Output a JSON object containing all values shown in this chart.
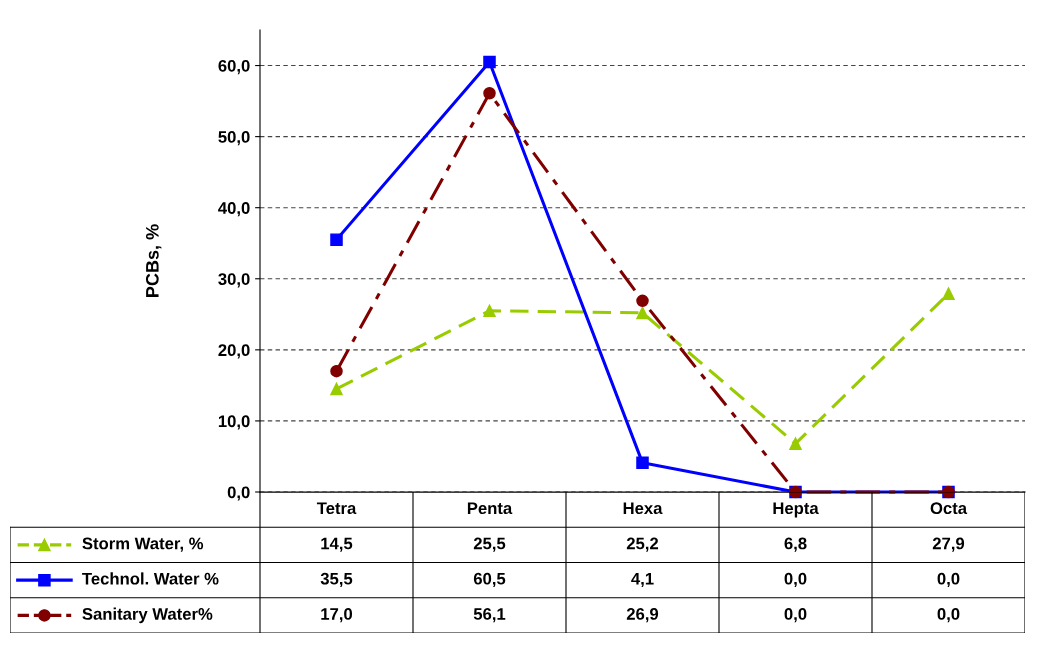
{
  "chart_data": {
    "type": "line",
    "ylabel": "PCBs, %",
    "categories": [
      "Tetra",
      "Penta",
      "Hexa",
      "Hepta",
      "Octa"
    ],
    "ylim": [
      0,
      65
    ],
    "yticks": [
      {
        "value": 0,
        "label": "0,0"
      },
      {
        "value": 10,
        "label": "10,0"
      },
      {
        "value": 20,
        "label": "20,0"
      },
      {
        "value": 30,
        "label": "30,0"
      },
      {
        "value": 40,
        "label": "40,0"
      },
      {
        "value": 50,
        "label": "50,0"
      },
      {
        "value": 60,
        "label": "60,0"
      }
    ],
    "grid": "y",
    "legend": "bottom left",
    "series": [
      {
        "name": "Storm Water, %",
        "color": "#99cc00",
        "marker": "triangle",
        "line_style": "dashed",
        "values": [
          14.5,
          25.5,
          25.2,
          6.8,
          27.9
        ],
        "value_labels": [
          "14,5",
          "25,5",
          "25,2",
          "6,8",
          "27,9"
        ]
      },
      {
        "name": "Technol. Water %",
        "color": "#0000ff",
        "marker": "square",
        "line_style": "solid",
        "values": [
          35.5,
          60.5,
          4.1,
          0.0,
          0.0
        ],
        "value_labels": [
          "35,5",
          "60,5",
          "4,1",
          "0,0",
          "0,0"
        ]
      },
      {
        "name": "Sanitary Water%",
        "color": "#800000",
        "marker": "circle",
        "line_style": "dashed",
        "values": [
          17.0,
          56.1,
          26.9,
          0.0,
          0.0
        ],
        "value_labels": [
          "17,0",
          "56,1",
          "26,9",
          "0,0",
          "0,0"
        ]
      }
    ]
  }
}
